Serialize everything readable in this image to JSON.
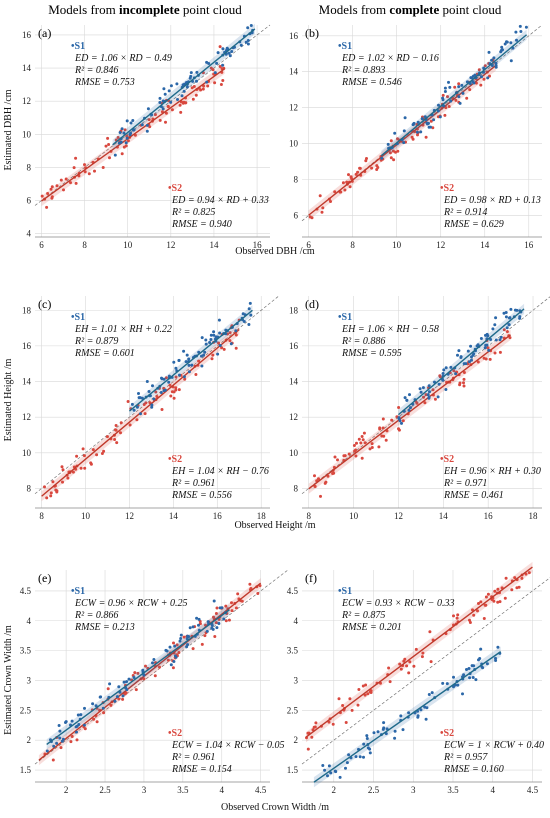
{
  "headers": {
    "left_prefix": "Models from ",
    "left_bold": "incomplete",
    "left_suffix": " point cloud",
    "right_prefix": "Models from ",
    "right_bold": "complete",
    "right_suffix": " point cloud"
  },
  "colors": {
    "s1": "#2b67a8",
    "s1_line": "#1f6a8a",
    "s2": "#d9483f",
    "s2_line": "#c0392b",
    "grid": "#d8d8d8"
  },
  "x_labels": [
    "Observed DBH /cm",
    "Observed Height /m",
    "Observed Crown Width /m"
  ],
  "y_labels": [
    "Estimated DBH /cm",
    "Estimated Height /m",
    "Estimated Crown Width /m"
  ],
  "chart_data": [
    {
      "id": "a",
      "letter": "(a)",
      "type": "scatter",
      "row": 0,
      "col": 0,
      "xlim": [
        5.7,
        16.6
      ],
      "ylim": [
        3.8,
        16.6
      ],
      "xticks": [
        6,
        8,
        10,
        12,
        14,
        16
      ],
      "yticks": [
        4,
        6,
        8,
        10,
        12,
        14,
        16
      ],
      "grid": true,
      "s1": {
        "label": "S1",
        "slope": 1.06,
        "intercept": -0.49,
        "x_range": [
          9.3,
          15.9
        ],
        "eq": "ED = 1.06 × RD − 0.49",
        "r2": "R² = 0.846",
        "rmse": "RMSE = 0.753"
      },
      "s2": {
        "label": "S2",
        "slope": 0.94,
        "intercept": 0.33,
        "x_range": [
          6.0,
          14.5
        ],
        "eq": "ED = 0.94 × RD + 0.33",
        "r2": "R² = 0.825",
        "rmse": "RMSE = 0.940"
      }
    },
    {
      "id": "b",
      "letter": "(b)",
      "type": "scatter",
      "row": 0,
      "col": 1,
      "xlim": [
        5.7,
        16.6
      ],
      "ylim": [
        4.8,
        16.6
      ],
      "xticks": [
        6,
        8,
        10,
        12,
        14,
        16
      ],
      "yticks": [
        6,
        8,
        10,
        12,
        14,
        16
      ],
      "grid": true,
      "s1": {
        "label": "S1",
        "slope": 1.02,
        "intercept": -0.16,
        "x_range": [
          9.3,
          15.9
        ],
        "eq": "ED = 1.02 × RD − 0.16",
        "r2": "R² = 0.893",
        "rmse": "RMSE = 0.546"
      },
      "s2": {
        "label": "S2",
        "slope": 0.98,
        "intercept": 0.13,
        "x_range": [
          6.0,
          14.5
        ],
        "eq": "ED = 0.98  × RD + 0.13",
        "r2": "R² = 0.914",
        "rmse": "RMSE = 0.629"
      }
    },
    {
      "id": "c",
      "letter": "(c)",
      "type": "scatter",
      "row": 1,
      "col": 0,
      "xlim": [
        7.7,
        18.4
      ],
      "ylim": [
        6.9,
        18.8
      ],
      "xticks": [
        8,
        10,
        12,
        14,
        16,
        18
      ],
      "yticks": [
        8,
        10,
        12,
        14,
        16,
        18
      ],
      "grid": true,
      "s1": {
        "label": "S1",
        "slope": 1.01,
        "intercept": 0.22,
        "x_range": [
          12.0,
          17.6
        ],
        "eq": "EH = 1.01 × RH + 0.22",
        "r2": "R² = 0.879",
        "rmse": "RMSE = 0.601"
      },
      "s2": {
        "label": "S2",
        "slope": 1.04,
        "intercept": -0.76,
        "x_range": [
          8.0,
          17.0
        ],
        "eq": "EH = 1.04 × RH − 0.76",
        "r2": "R² = 0.961",
        "rmse": "RMSE = 0.556"
      }
    },
    {
      "id": "d",
      "letter": "(d)",
      "type": "scatter",
      "row": 1,
      "col": 1,
      "xlim": [
        7.7,
        18.4
      ],
      "ylim": [
        6.9,
        18.8
      ],
      "xticks": [
        8,
        10,
        12,
        14,
        16,
        18
      ],
      "yticks": [
        8,
        10,
        12,
        14,
        16,
        18
      ],
      "grid": true,
      "s1": {
        "label": "S1",
        "slope": 1.06,
        "intercept": -0.58,
        "x_range": [
          12.0,
          17.6
        ],
        "eq": "EH = 1.06 × RH − 0.58",
        "r2": "R² = 0.886",
        "rmse": "RMSE = 0.595"
      },
      "s2": {
        "label": "S2",
        "slope": 0.96,
        "intercept": 0.3,
        "x_range": [
          8.0,
          17.0
        ],
        "eq": "EH = 0.96 × RH + 0.30",
        "r2": "R² = 0.971",
        "rmse": "RMSE = 0.461"
      }
    },
    {
      "id": "e",
      "letter": "(e)",
      "type": "scatter",
      "row": 2,
      "col": 0,
      "xlim": [
        1.6,
        4.62
      ],
      "ylim": [
        1.3,
        4.85
      ],
      "xticks": [
        2,
        2.5,
        3,
        3.5,
        4,
        4.5
      ],
      "yticks": [
        1.5,
        2,
        2.5,
        3,
        3.5,
        4,
        4.5
      ],
      "grid": true,
      "s1": {
        "label": "S1",
        "slope": 0.96,
        "intercept": 0.25,
        "x_range": [
          1.75,
          4.1
        ],
        "eq": "ECW = 0.96 × RCW + 0.25",
        "r2": "R² = 0.866",
        "rmse": "RMSE = 0.213"
      },
      "s2": {
        "label": "S2",
        "slope": 1.04,
        "intercept": -0.05,
        "x_range": [
          1.65,
          4.5
        ],
        "eq": "ECW = 1.04 × RCW − 0.05",
        "r2": "R² = 0.961",
        "rmse": "RMSE = 0.154"
      }
    },
    {
      "id": "f",
      "letter": "(f)",
      "type": "scatter",
      "row": 2,
      "col": 1,
      "xlim": [
        1.6,
        4.62
      ],
      "ylim": [
        1.3,
        4.85
      ],
      "xticks": [
        2,
        2.5,
        3,
        3.5,
        4,
        4.5
      ],
      "yticks": [
        1.5,
        2,
        2.5,
        3,
        3.5,
        4,
        4.5
      ],
      "grid": true,
      "s1": {
        "label": "S1",
        "slope": 0.93,
        "intercept": -0.33,
        "x_range": [
          1.75,
          4.1
        ],
        "eq": "ECW = 0.93 × RCW − 0.33",
        "r2": "R² = 0.875",
        "rmse": "RMSE = 0.201"
      },
      "s2": {
        "label": "S2",
        "slope": 1,
        "intercept": 0.4,
        "x_range": [
          1.65,
          4.5
        ],
        "eq": "ECW = 1 × RCW + 0.40",
        "r2": "R² = 0.957",
        "rmse": "RMSE = 0.160"
      }
    }
  ]
}
